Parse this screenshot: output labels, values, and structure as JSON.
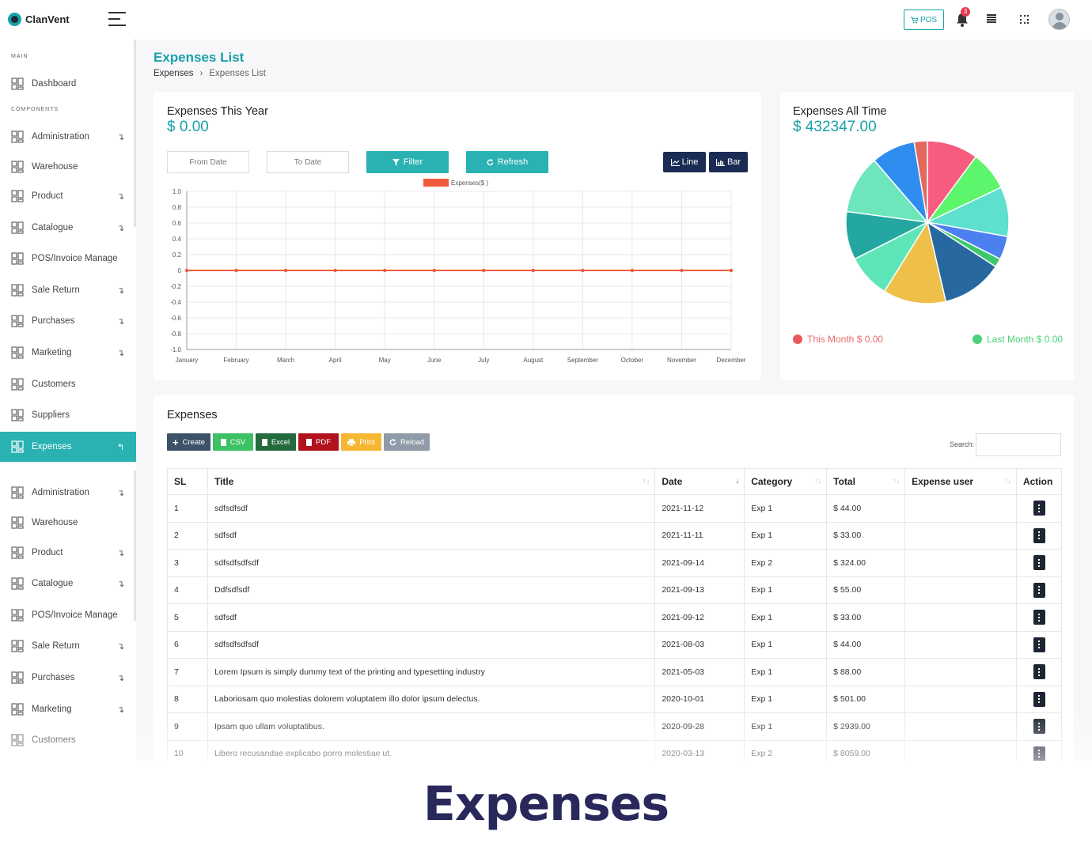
{
  "brand": {
    "name": "ClanVent"
  },
  "topbar": {
    "pos_label": "POS",
    "notification_count": "3"
  },
  "sidebar": {
    "section_main": "MAIN",
    "section_components": "COMPONENTS",
    "items": [
      {
        "label": "Dashboard",
        "icon": "dashboard-icon",
        "arrow": ""
      },
      {
        "label": "Administration",
        "icon": "admin-user-icon",
        "arrow": "↴"
      },
      {
        "label": "Warehouse",
        "icon": "home-icon",
        "arrow": ""
      },
      {
        "label": "Product",
        "icon": "product-icon",
        "arrow": "↴"
      },
      {
        "label": "Catalogue",
        "icon": "catalogue-icon",
        "arrow": "↴"
      },
      {
        "label": "POS/Invoice Manage",
        "icon": "invoice-icon",
        "arrow": ""
      },
      {
        "label": "Sale Return",
        "icon": "sale-return-icon",
        "arrow": "↴"
      },
      {
        "label": "Purchases",
        "icon": "purchases-icon",
        "arrow": "↴"
      },
      {
        "label": "Marketing",
        "icon": "percent-icon",
        "arrow": "↴"
      },
      {
        "label": "Customers",
        "icon": "customers-icon",
        "arrow": ""
      },
      {
        "label": "Suppliers",
        "icon": "suppliers-icon",
        "arrow": ""
      },
      {
        "label": "Expenses",
        "icon": "expenses-icon",
        "arrow": "↰"
      },
      {
        "label": "Administration",
        "icon": "admin-user-icon",
        "arrow": "↴"
      },
      {
        "label": "Warehouse",
        "icon": "home-icon",
        "arrow": ""
      },
      {
        "label": "Product",
        "icon": "product-icon",
        "arrow": "↴"
      },
      {
        "label": "Catalogue",
        "icon": "catalogue-icon",
        "arrow": "↴"
      },
      {
        "label": "POS/Invoice Manage",
        "icon": "invoice-icon",
        "arrow": ""
      },
      {
        "label": "Sale Return",
        "icon": "sale-return-icon",
        "arrow": "↴"
      },
      {
        "label": "Purchases",
        "icon": "purchases-icon",
        "arrow": "↴"
      },
      {
        "label": "Marketing",
        "icon": "percent-icon",
        "arrow": "↴"
      },
      {
        "label": "Customers",
        "icon": "customers-icon",
        "arrow": ""
      }
    ]
  },
  "page": {
    "title": "Expenses List",
    "breadcrumb": {
      "parent": "Expenses",
      "current": "Expenses List"
    }
  },
  "year_card": {
    "title": "Expenses This Year",
    "amount": "$ 0.00",
    "from_placeholder": "From Date",
    "to_placeholder": "To Date",
    "filter_label": "Filter",
    "refresh_label": "Refresh",
    "line_label": "Line",
    "bar_label": "Bar"
  },
  "alltime_card": {
    "title": "Expenses All Time",
    "amount": "$ 432347.00",
    "this_month": "This Month $ 0.00",
    "last_month": "Last Month $ 0.00"
  },
  "chart_data": [
    {
      "type": "line",
      "legend": [
        "Expenses($ )"
      ],
      "categories": [
        "January",
        "February",
        "March",
        "April",
        "May",
        "June",
        "July",
        "August",
        "September",
        "October",
        "November",
        "December"
      ],
      "series": [
        {
          "name": "Expenses($ )",
          "values": [
            0,
            0,
            0,
            0,
            0,
            0,
            0,
            0,
            0,
            0,
            0,
            0
          ],
          "color": "#f05a3c"
        }
      ],
      "yticks": [
        "1.0",
        "0.8",
        "0.6",
        "0.4",
        "0.2",
        "0",
        "-0.2",
        "-0.4",
        "-0.6",
        "-0.8",
        "-1.0"
      ],
      "ylim": [
        -1,
        1
      ],
      "grid": true,
      "legend_position": "top"
    },
    {
      "type": "pie",
      "slices": [
        {
          "value": 35,
          "color": "#f75c7e"
        },
        {
          "value": 27,
          "color": "#5cf56c"
        },
        {
          "value": 34,
          "color": "#5ee0cf"
        },
        {
          "value": 16,
          "color": "#4c7ff0"
        },
        {
          "value": 6,
          "color": "#3ec76a"
        },
        {
          "value": 42,
          "color": "#2868a0"
        },
        {
          "value": 43,
          "color": "#eec04a"
        },
        {
          "value": 30,
          "color": "#5ee6b8"
        },
        {
          "value": 33,
          "color": "#23a7a0"
        },
        {
          "value": 40,
          "color": "#6de6bc"
        },
        {
          "value": 30,
          "color": "#2f8df0"
        },
        {
          "value": 9,
          "color": "#e5685f"
        }
      ]
    }
  ],
  "expenses_table": {
    "heading": "Expenses",
    "actions": [
      "Create",
      "CSV",
      "Excel",
      "PDF",
      "Print",
      "Reload"
    ],
    "search_label": "Search:",
    "columns": [
      "SL",
      "Title",
      "Date",
      "Category",
      "Total",
      "Expense user",
      "Action"
    ],
    "rows": [
      {
        "sl": "1",
        "title": "sdfsdfsdf",
        "date": "2021-11-12",
        "category": "Exp 1",
        "total": "$ 44.00",
        "user": ""
      },
      {
        "sl": "2",
        "title": "sdfsdf",
        "date": "2021-11-11",
        "category": "Exp 1",
        "total": "$ 33.00",
        "user": ""
      },
      {
        "sl": "3",
        "title": "sdfsdfsdfsdf",
        "date": "2021-09-14",
        "category": "Exp 2",
        "total": "$ 324.00",
        "user": ""
      },
      {
        "sl": "4",
        "title": "Ddfsdfsdf",
        "date": "2021-09-13",
        "category": "Exp 1",
        "total": "$ 55.00",
        "user": ""
      },
      {
        "sl": "5",
        "title": "sdfsdf",
        "date": "2021-09-12",
        "category": "Exp 1",
        "total": "$ 33.00",
        "user": ""
      },
      {
        "sl": "6",
        "title": "sdfsdfsdfsdf",
        "date": "2021-08-03",
        "category": "Exp 1",
        "total": "$ 44.00",
        "user": ""
      },
      {
        "sl": "7",
        "title": "Lorem Ipsum is simply dummy text of the printing and typesetting industry",
        "date": "2021-05-03",
        "category": "Exp 1",
        "total": "$ 88.00",
        "user": ""
      },
      {
        "sl": "8",
        "title": "Laboriosam quo molestias dolorem voluptatem illo dolor ipsum delectus.",
        "date": "2020-10-01",
        "category": "Exp 1",
        "total": "$ 501.00",
        "user": ""
      },
      {
        "sl": "9",
        "title": "Ipsam quo ullam voluptatibus.",
        "date": "2020-09-28",
        "category": "Exp 1",
        "total": "$ 2939.00",
        "user": ""
      },
      {
        "sl": "10",
        "title": "Libero recusandae explicabo porro molestiae ut.",
        "date": "2020-03-13",
        "category": "Exp 2",
        "total": "$ 8059.00",
        "user": ""
      }
    ]
  },
  "colors": {
    "accent": "#2ab1b2",
    "navy": "#1a2b54",
    "footer_title": "#29285b"
  },
  "footer": {
    "title": "Expenses"
  }
}
